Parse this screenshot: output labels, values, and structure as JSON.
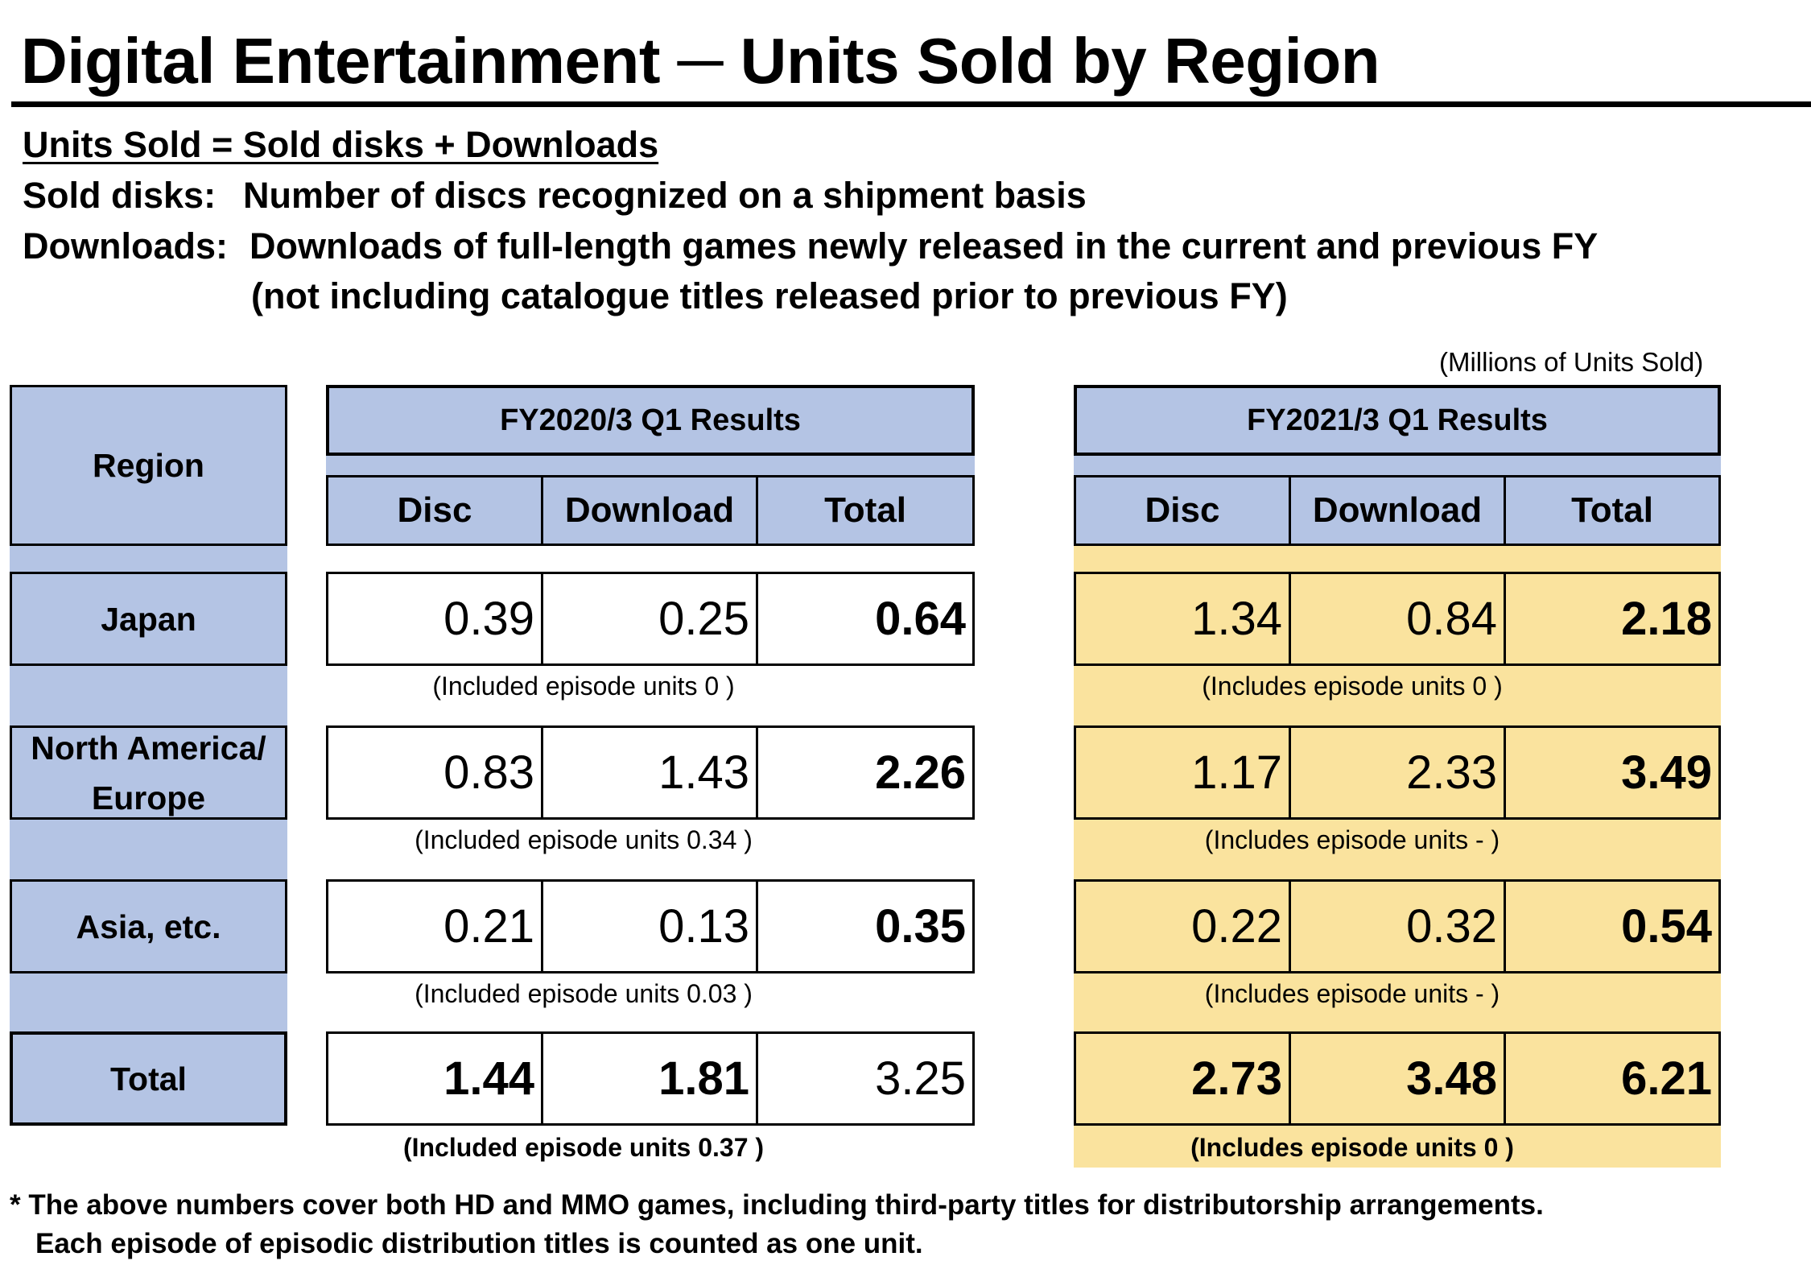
{
  "title": "Digital Entertainment ─ Units Sold by Region",
  "definitions": {
    "heading": "Units Sold = Sold disks + Downloads",
    "disks_label": "Sold disks:",
    "disks_text": "Number of discs recognized on a shipment basis",
    "downloads_label": "Downloads:",
    "downloads_text": "Downloads of full-length games newly released in the current and previous FY",
    "downloads_text2": "(not including catalogue titles released prior to previous FY)"
  },
  "unit_note": "(Millions of Units Sold)",
  "table": {
    "region_header": "Region",
    "columns": [
      "Disc",
      "Download",
      "Total"
    ],
    "periods": [
      {
        "label": "FY2020/3 Q1 Results",
        "rows": [
          {
            "values": [
              "0.39",
              "0.25",
              "0.64"
            ],
            "note": "(Included episode units 0 )"
          },
          {
            "values": [
              "0.83",
              "1.43",
              "2.26"
            ],
            "note": "(Included episode units 0.34 )"
          },
          {
            "values": [
              "0.21",
              "0.13",
              "0.35"
            ],
            "note": "(Included episode units 0.03 )"
          },
          {
            "values": [
              "1.44",
              "1.81",
              "3.25"
            ],
            "note": "(Included episode units 0.37 )"
          }
        ]
      },
      {
        "label": "FY2021/3 Q1 Results",
        "rows": [
          {
            "values": [
              "1.34",
              "0.84",
              "2.18"
            ],
            "note": "(Includes episode units 0 )"
          },
          {
            "values": [
              "1.17",
              "2.33",
              "3.49"
            ],
            "note": "(Includes episode units - )"
          },
          {
            "values": [
              "0.22",
              "0.32",
              "0.54"
            ],
            "note": "(Includes episode units - )"
          },
          {
            "values": [
              "2.73",
              "3.48",
              "6.21"
            ],
            "note": "(Includes episode units 0 )"
          }
        ]
      }
    ],
    "regions": [
      {
        "line1": "Japan",
        "line2": ""
      },
      {
        "line1": "North America/",
        "line2": "Europe"
      },
      {
        "line1": "Asia, etc.",
        "line2": ""
      },
      {
        "line1": "Total",
        "line2": ""
      }
    ]
  },
  "footnote": {
    "line1": "*  The above numbers cover both HD and MMO games, including third-party titles for distributorship arrangements.",
    "line2": "Each episode of episodic distribution titles is counted as one unit."
  },
  "colors": {
    "header_blue": "#b4c4e4",
    "highlight_yellow": "#fae39e"
  }
}
